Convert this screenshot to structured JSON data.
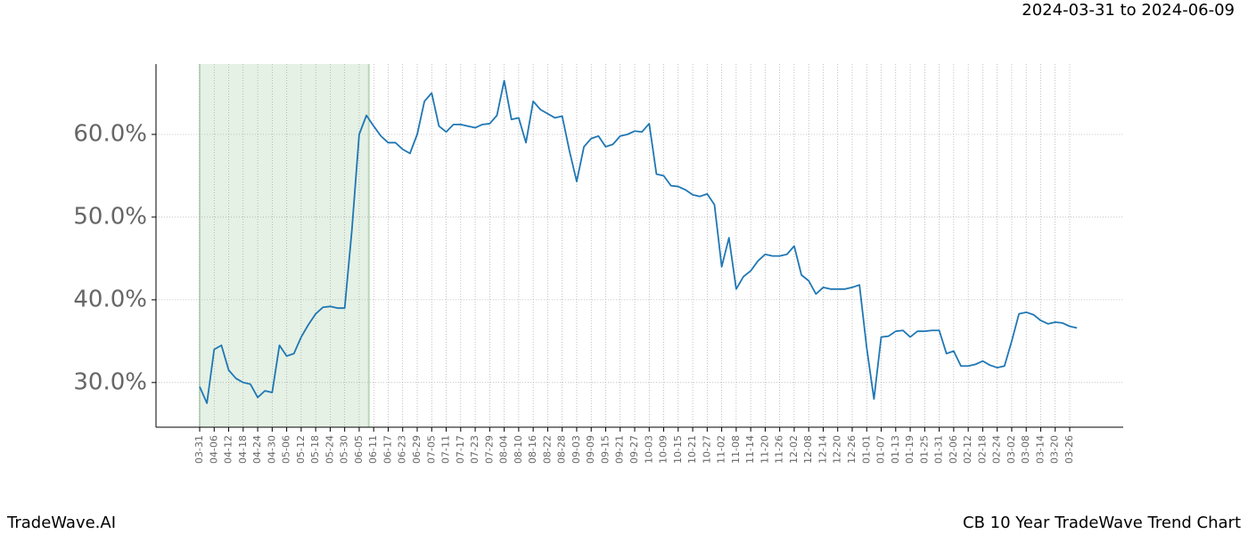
{
  "chart_data": {
    "type": "line",
    "title": "CB 10 Year TradeWave Trend Chart",
    "subtitle": "2024-03-31 to 2024-06-09",
    "watermark": "TradeWave.AI",
    "categories": [
      "03-31",
      null,
      "04-06",
      null,
      "04-12",
      null,
      "04-18",
      null,
      "04-24",
      null,
      "04-30",
      null,
      "05-06",
      null,
      "05-12",
      null,
      "05-18",
      null,
      "05-24",
      null,
      "05-30",
      null,
      "06-05",
      null,
      "06-11",
      null,
      "06-17",
      null,
      "06-23",
      null,
      "06-29",
      null,
      "07-05",
      null,
      "07-11",
      null,
      "07-17",
      null,
      "07-23",
      null,
      "07-29",
      null,
      "08-04",
      null,
      "08-10",
      null,
      "08-16",
      null,
      "08-22",
      null,
      "08-28",
      null,
      "09-03",
      null,
      "09-09",
      null,
      "09-15",
      null,
      "09-21",
      null,
      "09-27",
      null,
      "10-03",
      null,
      "10-09",
      null,
      "10-15",
      null,
      "10-21",
      null,
      "10-27",
      null,
      "11-02",
      null,
      "11-08",
      null,
      "11-14",
      null,
      "11-20",
      null,
      "11-26",
      null,
      "12-02",
      null,
      "12-08",
      null,
      "12-14",
      null,
      "12-20",
      null,
      "12-26",
      null,
      "01-01",
      null,
      "01-07",
      null,
      "01-13",
      null,
      "01-19",
      null,
      "01-25",
      null,
      "01-31",
      null,
      "02-06",
      null,
      "02-12",
      null,
      "02-18",
      null,
      "02-24",
      null,
      "03-02",
      null,
      "03-08",
      null,
      "03-14",
      null,
      "03-20",
      null,
      "03-26",
      null
    ],
    "series": [
      {
        "name": "CB",
        "color": "#1f77b4",
        "values": [
          29.5,
          27.5,
          34,
          34.5,
          31.5,
          30.5,
          30,
          29.8,
          28.2,
          29,
          28.8,
          34.5,
          33.2,
          33.5,
          35.5,
          37,
          38.3,
          39.1,
          39.2,
          39,
          39,
          48.5,
          60,
          62.3,
          61,
          59.8,
          59,
          59,
          58.2,
          57.7,
          60,
          64,
          65,
          61,
          60.3,
          61.2,
          61.2,
          61,
          60.8,
          61.2,
          61.3,
          62.3,
          66.5,
          61.8,
          62,
          59,
          64,
          63,
          62.5,
          62,
          62.2,
          58,
          54.3,
          58.5,
          59.5,
          59.8,
          58.5,
          58.8,
          59.8,
          60,
          60.4,
          60.3,
          61.3,
          55.2,
          55,
          53.8,
          53.7,
          53.3,
          52.7,
          52.5,
          52.8,
          51.5,
          44,
          47.5,
          41.3,
          42.8,
          43.5,
          44.7,
          45.5,
          45.3,
          45.3,
          45.5,
          46.5,
          43,
          42.3,
          40.7,
          41.5,
          41.3,
          41.3,
          41.3,
          41.5,
          41.8,
          34.2,
          28,
          35.5,
          35.6,
          36.2,
          36.3,
          35.5,
          36.2,
          36.2,
          36.3,
          36.3,
          33.5,
          33.8,
          32,
          32,
          32.2,
          32.6,
          32.1,
          31.8,
          32,
          35,
          38.3,
          38.5,
          38.2,
          37.5,
          37.1,
          37.3,
          37.2,
          36.8,
          36.6
        ]
      }
    ],
    "highlight": [
      0,
      23.33
    ],
    "ylim": [
      24.6,
      68.5
    ],
    "yticks": [
      {
        "value": 30,
        "label": "30.0%"
      },
      {
        "value": 40,
        "label": "40.0%"
      },
      {
        "value": 50,
        "label": "50.0%"
      },
      {
        "value": 60,
        "label": "60.0%"
      }
    ],
    "grid": true
  }
}
